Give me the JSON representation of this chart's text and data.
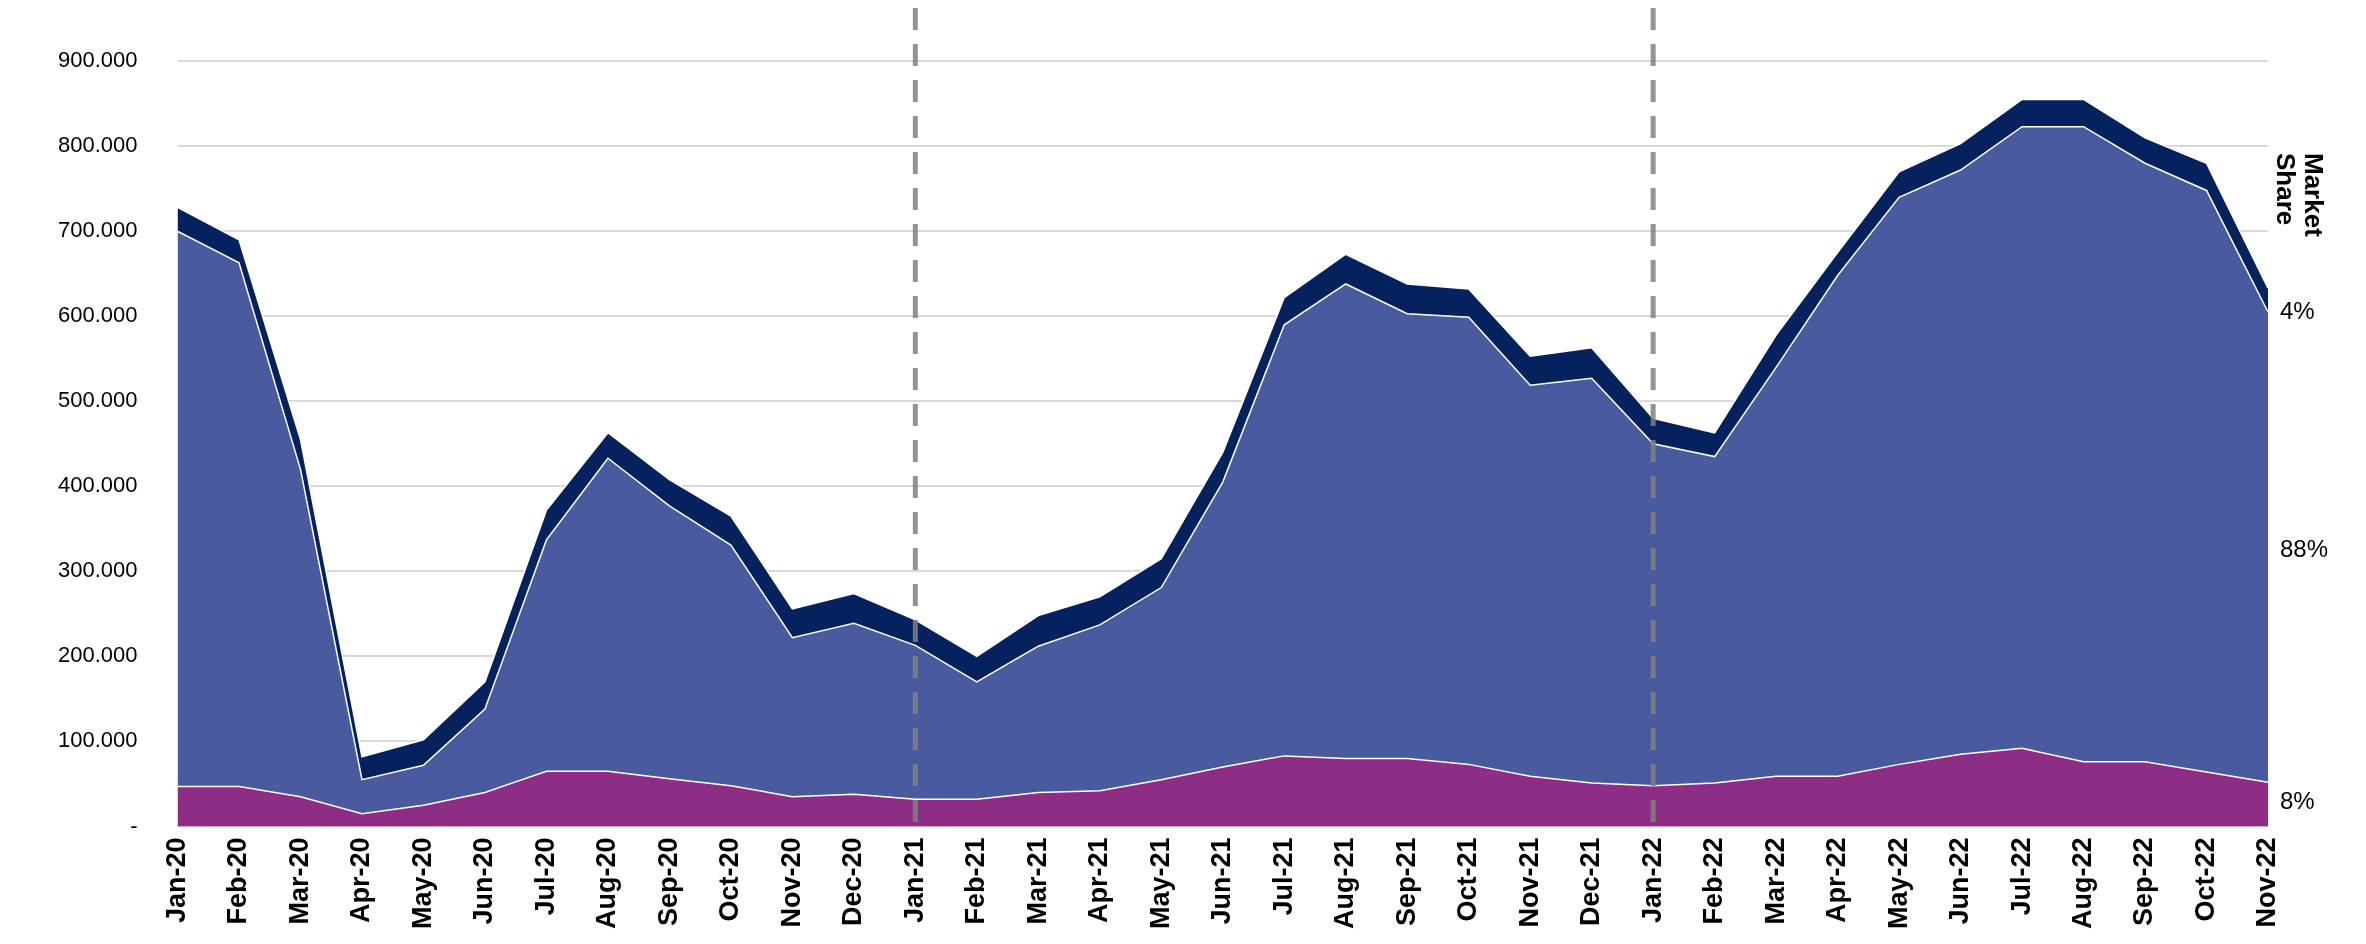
{
  "chart_data": {
    "type": "area",
    "stacked": true,
    "categories": [
      "Jan-20",
      "Feb-20",
      "Mar-20",
      "Apr-20",
      "May-20",
      "Jun-20",
      "Jul-20",
      "Aug-20",
      "Sep-20",
      "Oct-20",
      "Nov-20",
      "Dec-20",
      "Jan-21",
      "Feb-21",
      "Mar-21",
      "Apr-21",
      "May-21",
      "Jun-21",
      "Jul-21",
      "Aug-21",
      "Sep-21",
      "Oct-21",
      "Nov-21",
      "Dec-21",
      "Jan-22",
      "Feb-22",
      "Mar-22",
      "Apr-22",
      "May-22",
      "Jun-22",
      "Jul-22",
      "Aug-22",
      "Sep-22",
      "Oct-22",
      "Nov-22"
    ],
    "series": [
      {
        "color": "#8e2d85",
        "values": [
          47000,
          47000,
          35000,
          15000,
          25000,
          40000,
          65000,
          65000,
          56000,
          48000,
          35000,
          38000,
          32000,
          32000,
          40000,
          42000,
          55000,
          70000,
          83000,
          80000,
          80000,
          73000,
          59000,
          51000,
          48000,
          51000,
          59000,
          59000,
          73000,
          85000,
          92000,
          76000,
          76000,
          64000,
          52000
        ]
      },
      {
        "color": "#4a5a9f",
        "values": [
          653000,
          616000,
          385000,
          40000,
          47000,
          98000,
          272000,
          368000,
          321000,
          283000,
          187000,
          201000,
          181000,
          138000,
          172000,
          195000,
          226000,
          335000,
          507000,
          558000,
          523000,
          526000,
          460000,
          476000,
          402000,
          384000,
          481000,
          589000,
          667000,
          687000,
          731000,
          747000,
          704000,
          684000,
          553000
        ]
      },
      {
        "color": "#05215e",
        "values": [
          28000,
          27000,
          35000,
          27000,
          30000,
          32000,
          35000,
          30000,
          31000,
          34000,
          34000,
          35000,
          30000,
          30000,
          36000,
          33000,
          34000,
          35000,
          32000,
          35000,
          35000,
          33000,
          34000,
          36000,
          30000,
          28000,
          38000,
          27000,
          30000,
          31000,
          32000,
          32000,
          30000,
          32000,
          28000
        ]
      }
    ],
    "ylim": [
      0,
      900000
    ],
    "yticks": [
      {
        "value": 0,
        "label": "-"
      },
      {
        "value": 100000,
        "label": "100.000"
      },
      {
        "value": 200000,
        "label": "200.000"
      },
      {
        "value": 300000,
        "label": "300.000"
      },
      {
        "value": 400000,
        "label": "400.000"
      },
      {
        "value": 500000,
        "label": "500.000"
      },
      {
        "value": 600000,
        "label": "600.000"
      },
      {
        "value": 700000,
        "label": "700.000"
      },
      {
        "value": 800000,
        "label": "800.000"
      },
      {
        "value": 900000,
        "label": "900.000"
      }
    ],
    "grid": "y",
    "legend": false,
    "ref_lines": [
      {
        "axis": "x",
        "value": "Jan-21",
        "color": "#808080",
        "line_style": "dashed"
      },
      {
        "axis": "x",
        "value": "Jan-22",
        "color": "#808080",
        "line_style": "dashed"
      }
    ],
    "annotations": [
      "Market Share",
      {
        "text": "4%",
        "x": "Nov-22",
        "y": 605000
      },
      {
        "text": "88%",
        "x": "Nov-22",
        "y": 325000
      },
      {
        "text": "8%",
        "x": "Nov-22",
        "y": 28000
      }
    ]
  }
}
